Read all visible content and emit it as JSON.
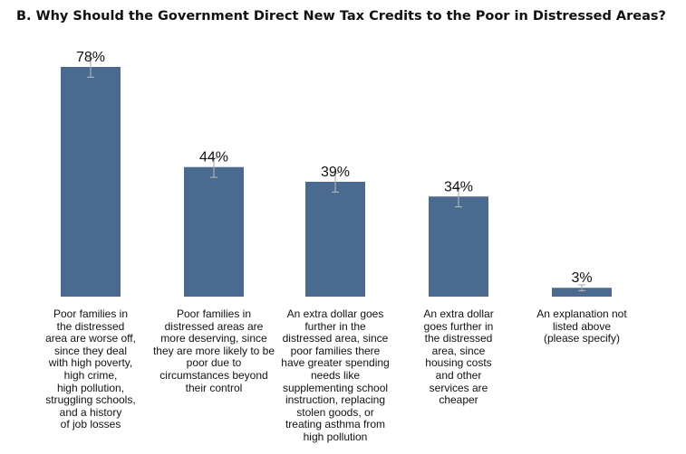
{
  "chart_data": {
    "type": "bar",
    "title": "B. Why Should the Government Direct New Tax Credits to the Poor in Distressed Areas?",
    "xlabel": "",
    "ylabel": "",
    "ylim": [
      0,
      82
    ],
    "grid": false,
    "bar_color": "#4a6a8f",
    "error_color": "#aab0b6",
    "categories": [
      "Poor families in\nthe distressed\narea are worse off,\nsince they deal\nwith high poverty,\nhigh crime,\nhigh pollution,\nstruggling schools,\nand a history\nof job losses",
      "Poor families in\ndistressed areas are\nmore deserving, since\nthey are more likely to be\npoor due to\ncircumstances beyond\ntheir control",
      "An extra dollar goes\nfurther in the\ndistressed area, since\npoor families there\nhave greater spending\nneeds like\nsupplementing school\ninstruction, replacing\nstolen goods, or\ntreating asthma from\nhigh pollution",
      "An extra dollar\ngoes further in\nthe distressed\narea, since\nhousing costs\nand other\nservices are\ncheaper",
      "An explanation not\nlisted above\n(please specify)"
    ],
    "values": [
      78,
      44,
      39,
      34,
      3
    ],
    "value_labels": [
      "78%",
      "44%",
      "39%",
      "34%",
      "3%"
    ],
    "error_low": [
      74.5,
      40.5,
      35.5,
      30.5,
      2
    ],
    "error_high": [
      81,
      47,
      42,
      37,
      4
    ]
  }
}
